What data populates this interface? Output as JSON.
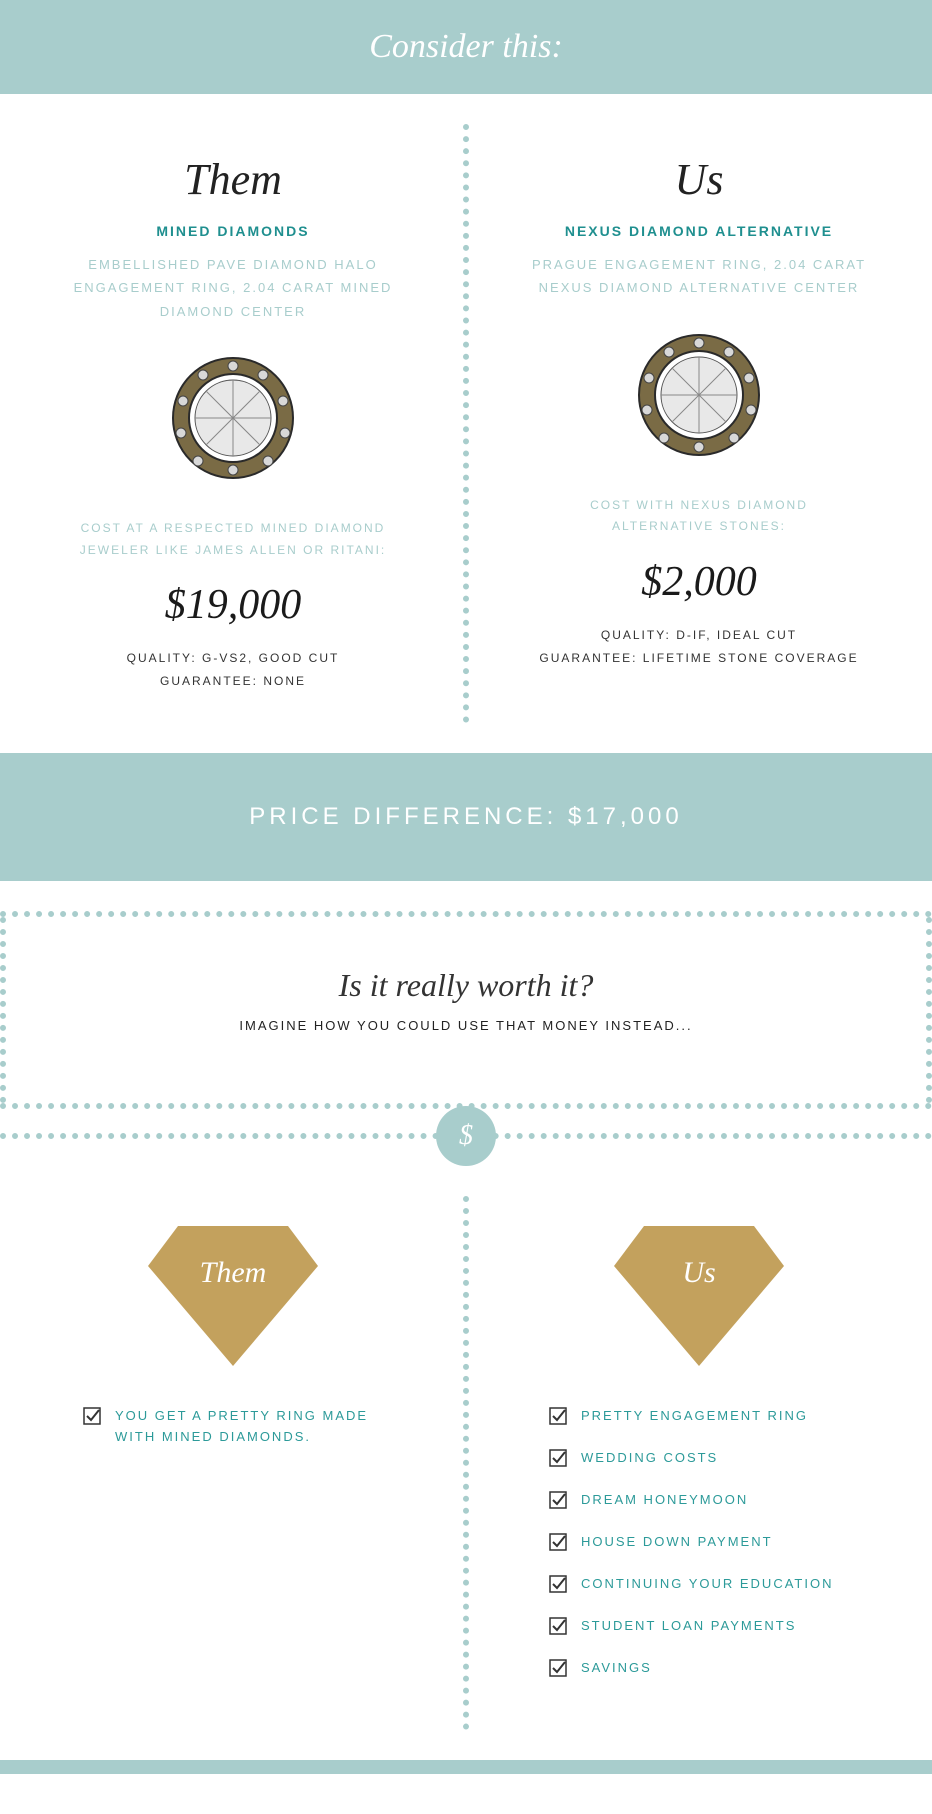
{
  "colors": {
    "teal": "#a8cdcc",
    "teal_dark": "#1f8f8f",
    "gold": "#c3a15d",
    "text": "#333333",
    "white": "#ffffff"
  },
  "header": {
    "title": "Consider this:"
  },
  "compare": {
    "them": {
      "title": "Them",
      "subhead": "MINED DIAMONDS",
      "desc": "EMBELLISHED PAVE DIAMOND HALO ENGAGEMENT RING, 2.04 CARAT MINED DIAMOND CENTER",
      "costlabel": "COST AT A RESPECTED MINED DIAMOND JEWELER LIKE JAMES ALLEN OR RITANI:",
      "price": "$19,000",
      "quality": "QUALITY: G-VS2, GOOD CUT",
      "guarantee": "GUARANTEE: NONE"
    },
    "us": {
      "title": "Us",
      "subhead": "NEXUS DIAMOND ALTERNATIVE",
      "desc": "PRAGUE ENGAGEMENT RING, 2.04 CARAT NEXUS DIAMOND ALTERNATIVE CENTER",
      "costlabel": "COST WITH NEXUS DIAMOND ALTERNATIVE STONES:",
      "price": "$2,000",
      "quality": "QUALITY: D-IF, IDEAL CUT",
      "guarantee": "GUARANTEE: LIFETIME STONE COVERAGE"
    }
  },
  "diff": {
    "label": "PRICE DIFFERENCE: $17,000"
  },
  "worth": {
    "title": "Is it really worth it?",
    "sub": "IMAGINE HOW YOU COULD USE THAT MONEY INSTEAD..."
  },
  "dollar": "$",
  "lists": {
    "them": {
      "title": "Them",
      "items": [
        "YOU GET A PRETTY RING MADE WITH MINED DIAMONDS."
      ]
    },
    "us": {
      "title": "Us",
      "items": [
        "PRETTY ENGAGEMENT RING",
        "WEDDING COSTS",
        "DREAM HONEYMOON",
        "HOUSE DOWN PAYMENT",
        "CONTINUING YOUR EDUCATION",
        "STUDENT LOAN PAYMENTS",
        "SAVINGS"
      ]
    }
  }
}
